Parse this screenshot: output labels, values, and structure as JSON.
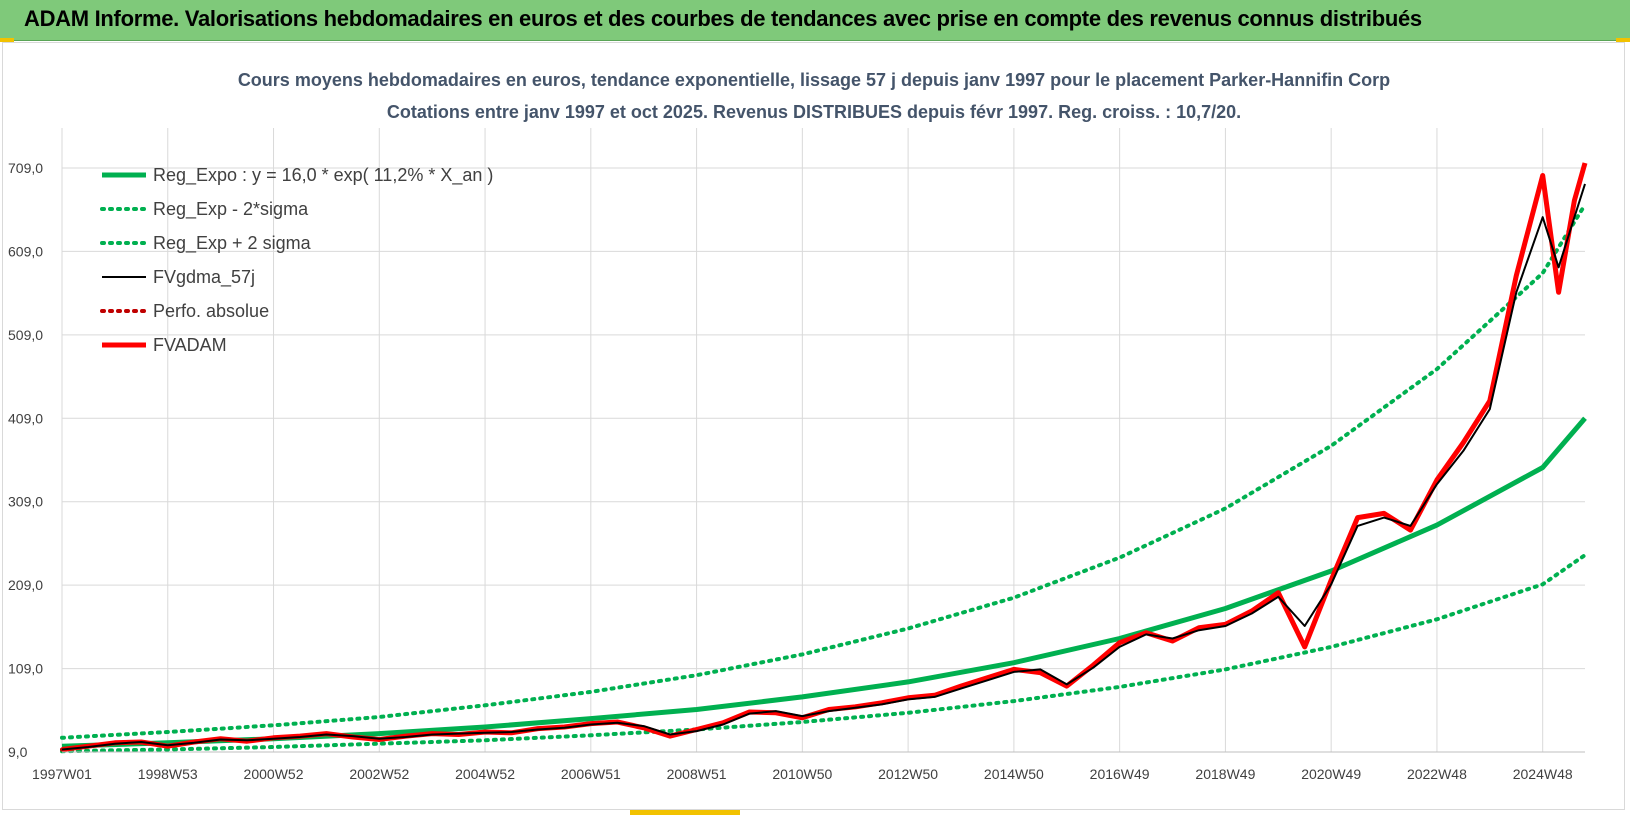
{
  "header": {
    "title": "ADAM Informe. Valorisations hebdomadaires en euros et des courbes de tendances avec prise en compte des revenus connus distribués"
  },
  "colors": {
    "header_bg": "#7fc97a",
    "trend": "#00b050",
    "smooth": "#000000",
    "price": "#ff0000",
    "grid": "#d9d9d9"
  },
  "chart_data": {
    "type": "line",
    "title": "Cours moyens hebdomadaires en euros, tendance exponentielle, lissage 57 j depuis janv 1997 pour le placement Parker-Hannifin Corp",
    "subtitle": "Cotations entre janv 1997 et oct 2025. Revenus DISTRIBUES depuis févr 1997. Reg. croiss. : 10,7/20.",
    "xlabel": "",
    "ylabel": "",
    "xlim": [
      1997.0,
      2025.8
    ],
    "ylim": [
      9,
      709
    ],
    "y_ticks": [
      "9,0",
      "109,0",
      "209,0",
      "309,0",
      "409,0",
      "509,0",
      "609,0",
      "709,0"
    ],
    "y_tick_values": [
      9,
      109,
      209,
      309,
      409,
      509,
      609,
      709
    ],
    "x_ticks": [
      "1997W01",
      "1998W53",
      "2000W52",
      "2002W52",
      "2004W52",
      "2006W51",
      "2008W51",
      "2010W50",
      "2012W50",
      "2014W50",
      "2016W49",
      "2018W49",
      "2020W49",
      "2022W48",
      "2024W48"
    ],
    "x_tick_values": [
      1997.0,
      1999.0,
      2001.0,
      2003.0,
      2005.0,
      2007.0,
      2009.0,
      2011.0,
      2013.0,
      2015.0,
      2017.0,
      2019.0,
      2021.0,
      2023.0,
      2025.0
    ],
    "grid": true,
    "legend_position": "top-left",
    "series": [
      {
        "name": "Reg_Expo : y = 16,0 * exp( 11,2% *  X_an )",
        "style": "solid-thick",
        "color": "#00b050",
        "x": [
          1997,
          1999,
          2001,
          2003,
          2005,
          2007,
          2009,
          2011,
          2013,
          2015,
          2017,
          2019,
          2021,
          2023,
          2025,
          2025.8
        ],
        "y": [
          16,
          20,
          25,
          31,
          39,
          49,
          60,
          75,
          93,
          116,
          145,
          181,
          226,
          281,
          350,
          409
        ]
      },
      {
        "name": "Reg_Exp - 2*sigma",
        "style": "dotted",
        "color": "#00b050",
        "x": [
          1997,
          1999,
          2001,
          2003,
          2005,
          2007,
          2009,
          2011,
          2013,
          2015,
          2017,
          2019,
          2021,
          2023,
          2025,
          2025.8
        ],
        "y": [
          10,
          12,
          15,
          19,
          23,
          29,
          36,
          45,
          56,
          70,
          87,
          108,
          135,
          168,
          210,
          245
        ]
      },
      {
        "name": "Reg_Exp + 2 sigma",
        "style": "dotted",
        "color": "#00b050",
        "x": [
          1997,
          1999,
          2001,
          2003,
          2005,
          2007,
          2009,
          2011,
          2013,
          2015,
          2017,
          2019,
          2021,
          2023,
          2025,
          2025.8
        ],
        "y": [
          26,
          33,
          41,
          51,
          65,
          81,
          101,
          126,
          157,
          194,
          242,
          301,
          376,
          468,
          583,
          665
        ]
      },
      {
        "name": "FVgdma_57j",
        "style": "solid",
        "color": "#000000",
        "x": [
          1997,
          1997.5,
          1998,
          1998.5,
          1999,
          1999.5,
          2000,
          2000.5,
          2001,
          2001.5,
          2002,
          2002.5,
          2003,
          2003.5,
          2004,
          2004.5,
          2005,
          2005.5,
          2006,
          2006.5,
          2007,
          2007.5,
          2008,
          2008.5,
          2009,
          2009.5,
          2010,
          2010.5,
          2011,
          2011.5,
          2012,
          2012.5,
          2013,
          2013.5,
          2014,
          2014.5,
          2015,
          2015.5,
          2016,
          2016.5,
          2017,
          2017.5,
          2018,
          2018.5,
          2019,
          2019.5,
          2020,
          2020.5,
          2021,
          2021.5,
          2022,
          2022.5,
          2023,
          2023.5,
          2024,
          2024.5,
          2025,
          2025.3,
          2025.6,
          2025.8
        ],
        "y": [
          12,
          15,
          19,
          21,
          17,
          20,
          24,
          23,
          25,
          27,
          30,
          28,
          25,
          27,
          30,
          31,
          32,
          33,
          36,
          38,
          42,
          44,
          40,
          30,
          34,
          42,
          55,
          58,
          52,
          58,
          62,
          66,
          72,
          75,
          85,
          95,
          105,
          108,
          90,
          110,
          135,
          150,
          145,
          155,
          160,
          175,
          195,
          160,
          210,
          280,
          290,
          280,
          330,
          370,
          420,
          560,
          650,
          590,
          650,
          690
        ]
      },
      {
        "name": "Perfo. absolue",
        "style": "dotted",
        "color": "#c00000",
        "x": [
          1997,
          1997.5,
          1998,
          1998.5,
          1999,
          1999.5,
          2000,
          2000.5,
          2001,
          2001.5,
          2002,
          2002.5,
          2003,
          2003.5,
          2004,
          2004.5,
          2005,
          2005.5,
          2006,
          2006.5,
          2007,
          2007.5,
          2008,
          2008.5,
          2009,
          2009.5,
          2010,
          2010.5,
          2011,
          2011.5,
          2012,
          2012.5,
          2013,
          2013.5,
          2014,
          2014.5,
          2015,
          2015.5,
          2016,
          2016.5,
          2017,
          2017.5,
          2018,
          2018.5,
          2019,
          2019.5,
          2020,
          2020.5,
          2021,
          2021.5,
          2022,
          2022.5,
          2023,
          2023.5,
          2024,
          2024.5,
          2025,
          2025.3,
          2025.6,
          2025.8
        ],
        "y": [
          12,
          16,
          20,
          21,
          16,
          21,
          25,
          22,
          26,
          28,
          31,
          27,
          24,
          28,
          31,
          30,
          33,
          32,
          37,
          39,
          43,
          45,
          38,
          28,
          36,
          44,
          57,
          56,
          50,
          60,
          63,
          68,
          74,
          77,
          88,
          98,
          108,
          104,
          88,
          113,
          140,
          152,
          142,
          158,
          162,
          178,
          200,
          135,
          215,
          290,
          295,
          275,
          335,
          380,
          430,
          580,
          700,
          560,
          670,
          715
        ]
      },
      {
        "name": "FVADAM",
        "style": "solid-thick",
        "color": "#ff0000",
        "x": [
          1997,
          1997.5,
          1998,
          1998.5,
          1999,
          1999.5,
          2000,
          2000.5,
          2001,
          2001.5,
          2002,
          2002.5,
          2003,
          2003.5,
          2004,
          2004.5,
          2005,
          2005.5,
          2006,
          2006.5,
          2007,
          2007.5,
          2008,
          2008.5,
          2009,
          2009.5,
          2010,
          2010.5,
          2011,
          2011.5,
          2012,
          2012.5,
          2013,
          2013.5,
          2014,
          2014.5,
          2015,
          2015.5,
          2016,
          2016.5,
          2017,
          2017.5,
          2018,
          2018.5,
          2019,
          2019.5,
          2020,
          2020.5,
          2021,
          2021.5,
          2022,
          2022.5,
          2023,
          2023.5,
          2024,
          2024.5,
          2025,
          2025.3,
          2025.6,
          2025.8
        ],
        "y": [
          12,
          16,
          20,
          21,
          16,
          21,
          25,
          22,
          26,
          28,
          31,
          27,
          24,
          28,
          31,
          30,
          33,
          32,
          37,
          39,
          43,
          45,
          38,
          28,
          36,
          44,
          57,
          56,
          50,
          60,
          63,
          68,
          74,
          77,
          88,
          98,
          108,
          104,
          88,
          113,
          140,
          152,
          142,
          158,
          162,
          178,
          200,
          135,
          215,
          290,
          295,
          275,
          335,
          380,
          430,
          580,
          700,
          560,
          670,
          715
        ]
      }
    ]
  }
}
